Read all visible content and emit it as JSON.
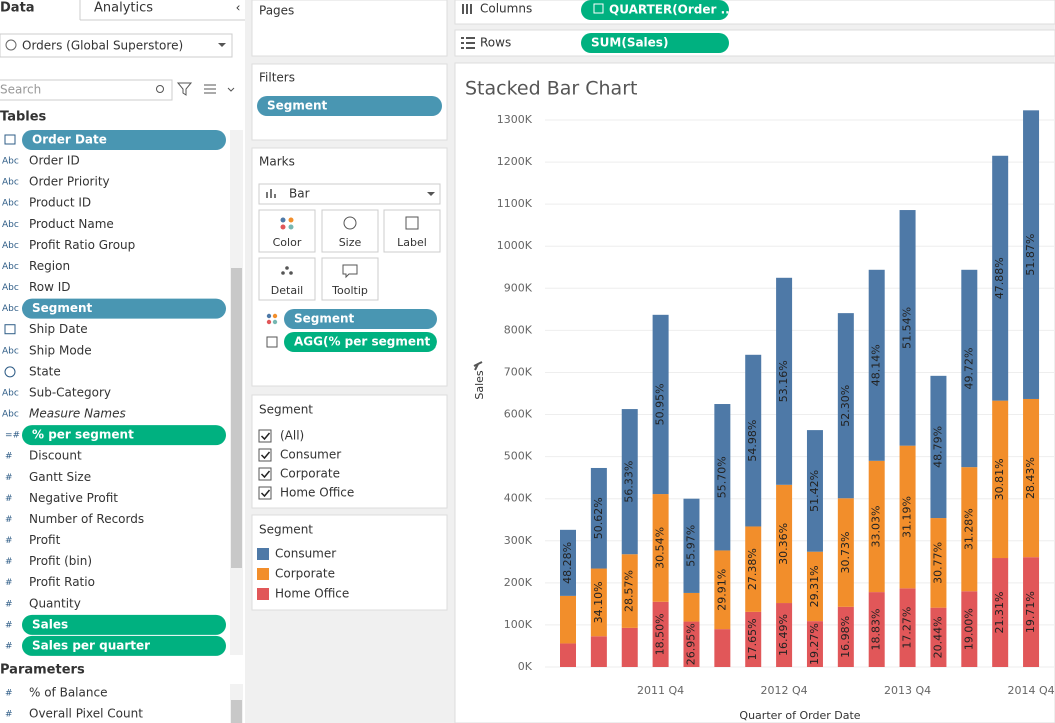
{
  "data_pane": {
    "tabs": [
      "Data",
      "Analytics"
    ],
    "datasource": "Orders (Global Superstore)",
    "search": "Search",
    "tables_heading": "Tables",
    "fields": [
      {
        "kind": "date",
        "name": "Order Date",
        "pill": "dimension"
      },
      {
        "icon": "Abc",
        "name": "Order ID"
      },
      {
        "icon": "Abc",
        "name": "Order Priority"
      },
      {
        "icon": "Abc",
        "name": "Product ID"
      },
      {
        "icon": "Abc",
        "name": "Product Name"
      },
      {
        "icon": "Abc",
        "name": "Profit Ratio Group"
      },
      {
        "icon": "Abc",
        "name": "Region"
      },
      {
        "icon": "Abc",
        "name": "Row ID"
      },
      {
        "icon": "Abc",
        "name": "Segment",
        "pill": "dimension"
      },
      {
        "kind": "date",
        "name": "Ship Date"
      },
      {
        "icon": "Abc",
        "name": "Ship Mode"
      },
      {
        "kind": "geo",
        "name": "State"
      },
      {
        "icon": "Abc",
        "name": "Sub-Category"
      },
      {
        "icon": "Abc",
        "name": "Measure Names",
        "italic": true
      },
      {
        "icon": "=#",
        "name": "% per segment",
        "pill": "measure"
      },
      {
        "icon": "#",
        "name": "Discount"
      },
      {
        "icon": "#",
        "name": "Gantt Size"
      },
      {
        "icon": "#",
        "name": "Negative Profit"
      },
      {
        "icon": "#",
        "name": "Number of Records"
      },
      {
        "icon": "#",
        "name": "Profit"
      },
      {
        "icon": "#",
        "name": "Profit (bin)"
      },
      {
        "icon": "#",
        "name": "Profit Ratio"
      },
      {
        "icon": "#",
        "name": "Quantity"
      },
      {
        "icon": "#",
        "name": "Sales",
        "pill": "measure"
      },
      {
        "icon": "#",
        "name": "Sales per quarter",
        "pill": "measure"
      }
    ],
    "parameters_heading": "Parameters",
    "parameters": [
      {
        "icon": "#",
        "name": "% of Balance"
      },
      {
        "icon": "#",
        "name": "Overall Pixel Count"
      }
    ]
  },
  "cards": {
    "pages": "Pages",
    "filters": "Filters",
    "filter_pills": [
      "Segment"
    ],
    "marks": "Marks",
    "mark_type": "Bar",
    "mark_buttons": [
      "Color",
      "Size",
      "Label",
      "Detail",
      "Tooltip"
    ],
    "mark_pills": [
      {
        "kind": "color",
        "name": "Segment"
      },
      {
        "kind": "label",
        "name": "AGG(% per segment )"
      }
    ],
    "filter_card": {
      "title": "Segment",
      "items": [
        "(All)",
        "Consumer",
        "Corporate",
        "Home Office"
      ]
    },
    "legend_title": "Segment"
  },
  "shelves": {
    "columns_label": "Columns",
    "columns_pill": "QUARTER(Order ..",
    "rows_label": "Rows",
    "rows_pill": "SUM(Sales)"
  },
  "chart_data": {
    "type": "stacked_bar",
    "title": "Stacked Bar Chart",
    "y_label": "Sales",
    "x_label": "Quarter of Order Date",
    "categories": [
      null,
      null,
      null,
      "2011 Q4",
      null,
      null,
      null,
      "2012 Q4",
      null,
      null,
      null,
      "2013 Q4",
      null,
      null,
      null,
      "2014 Q4"
    ],
    "series": [
      {
        "name": "Home Office",
        "color": "#e15759",
        "values": [
          56000,
          73000,
          93000,
          155000,
          108000,
          90000,
          131000,
          152000,
          109000,
          143000,
          178000,
          187000,
          141000,
          180000,
          259000,
          261000
        ],
        "share_labels": [
          null,
          null,
          null,
          "18.50%",
          "26.95%",
          null,
          "17.65%",
          "16.49%",
          "19.27%",
          "16.98%",
          "18.83%",
          "17.27%",
          "20.44%",
          "19.00%",
          "21.31%",
          "19.71%"
        ]
      },
      {
        "name": "Corporate",
        "color": "#f28e2b",
        "values": [
          113000,
          161000,
          175000,
          256000,
          68000,
          187000,
          203000,
          281000,
          165000,
          258000,
          312000,
          339000,
          213000,
          295000,
          374000,
          376000
        ],
        "share_labels": [
          null,
          "34.10%",
          "28.57%",
          "30.54%",
          null,
          "29.91%",
          "27.38%",
          "30.36%",
          "29.31%",
          "30.73%",
          "33.03%",
          "31.19%",
          "30.77%",
          "31.28%",
          "30.81%",
          "28.43%"
        ]
      },
      {
        "name": "Consumer",
        "color": "#4e79a7",
        "values": [
          157000,
          239000,
          345000,
          426000,
          224000,
          348000,
          408000,
          492000,
          289000,
          440000,
          454000,
          560000,
          338000,
          469000,
          582000,
          686000
        ],
        "share_labels": [
          "48.28%",
          "50.62%",
          "56.33%",
          "50.95%",
          "55.97%",
          "55.70%",
          "54.98%",
          "53.16%",
          "51.42%",
          "52.30%",
          "48.14%",
          "51.54%",
          "48.79%",
          "49.72%",
          "47.88%",
          "51.87%"
        ]
      }
    ],
    "legend_order": [
      2,
      1,
      0
    ],
    "ylim": [
      0,
      1300000
    ],
    "yticks": [
      {
        "value": 0,
        "label": "0K"
      },
      {
        "value": 100000,
        "label": "100K"
      },
      {
        "value": 200000,
        "label": "200K"
      },
      {
        "value": 300000,
        "label": "300K"
      },
      {
        "value": 400000,
        "label": "400K"
      },
      {
        "value": 500000,
        "label": "500K"
      },
      {
        "value": 600000,
        "label": "600K"
      },
      {
        "value": 700000,
        "label": "700K"
      },
      {
        "value": 800000,
        "label": "800K"
      },
      {
        "value": 900000,
        "label": "900K"
      },
      {
        "value": 1000000,
        "label": "1000K"
      },
      {
        "value": 1100000,
        "label": "1100K"
      },
      {
        "value": 1200000,
        "label": "1200K"
      },
      {
        "value": 1300000,
        "label": "1300K"
      }
    ],
    "grid": true
  }
}
